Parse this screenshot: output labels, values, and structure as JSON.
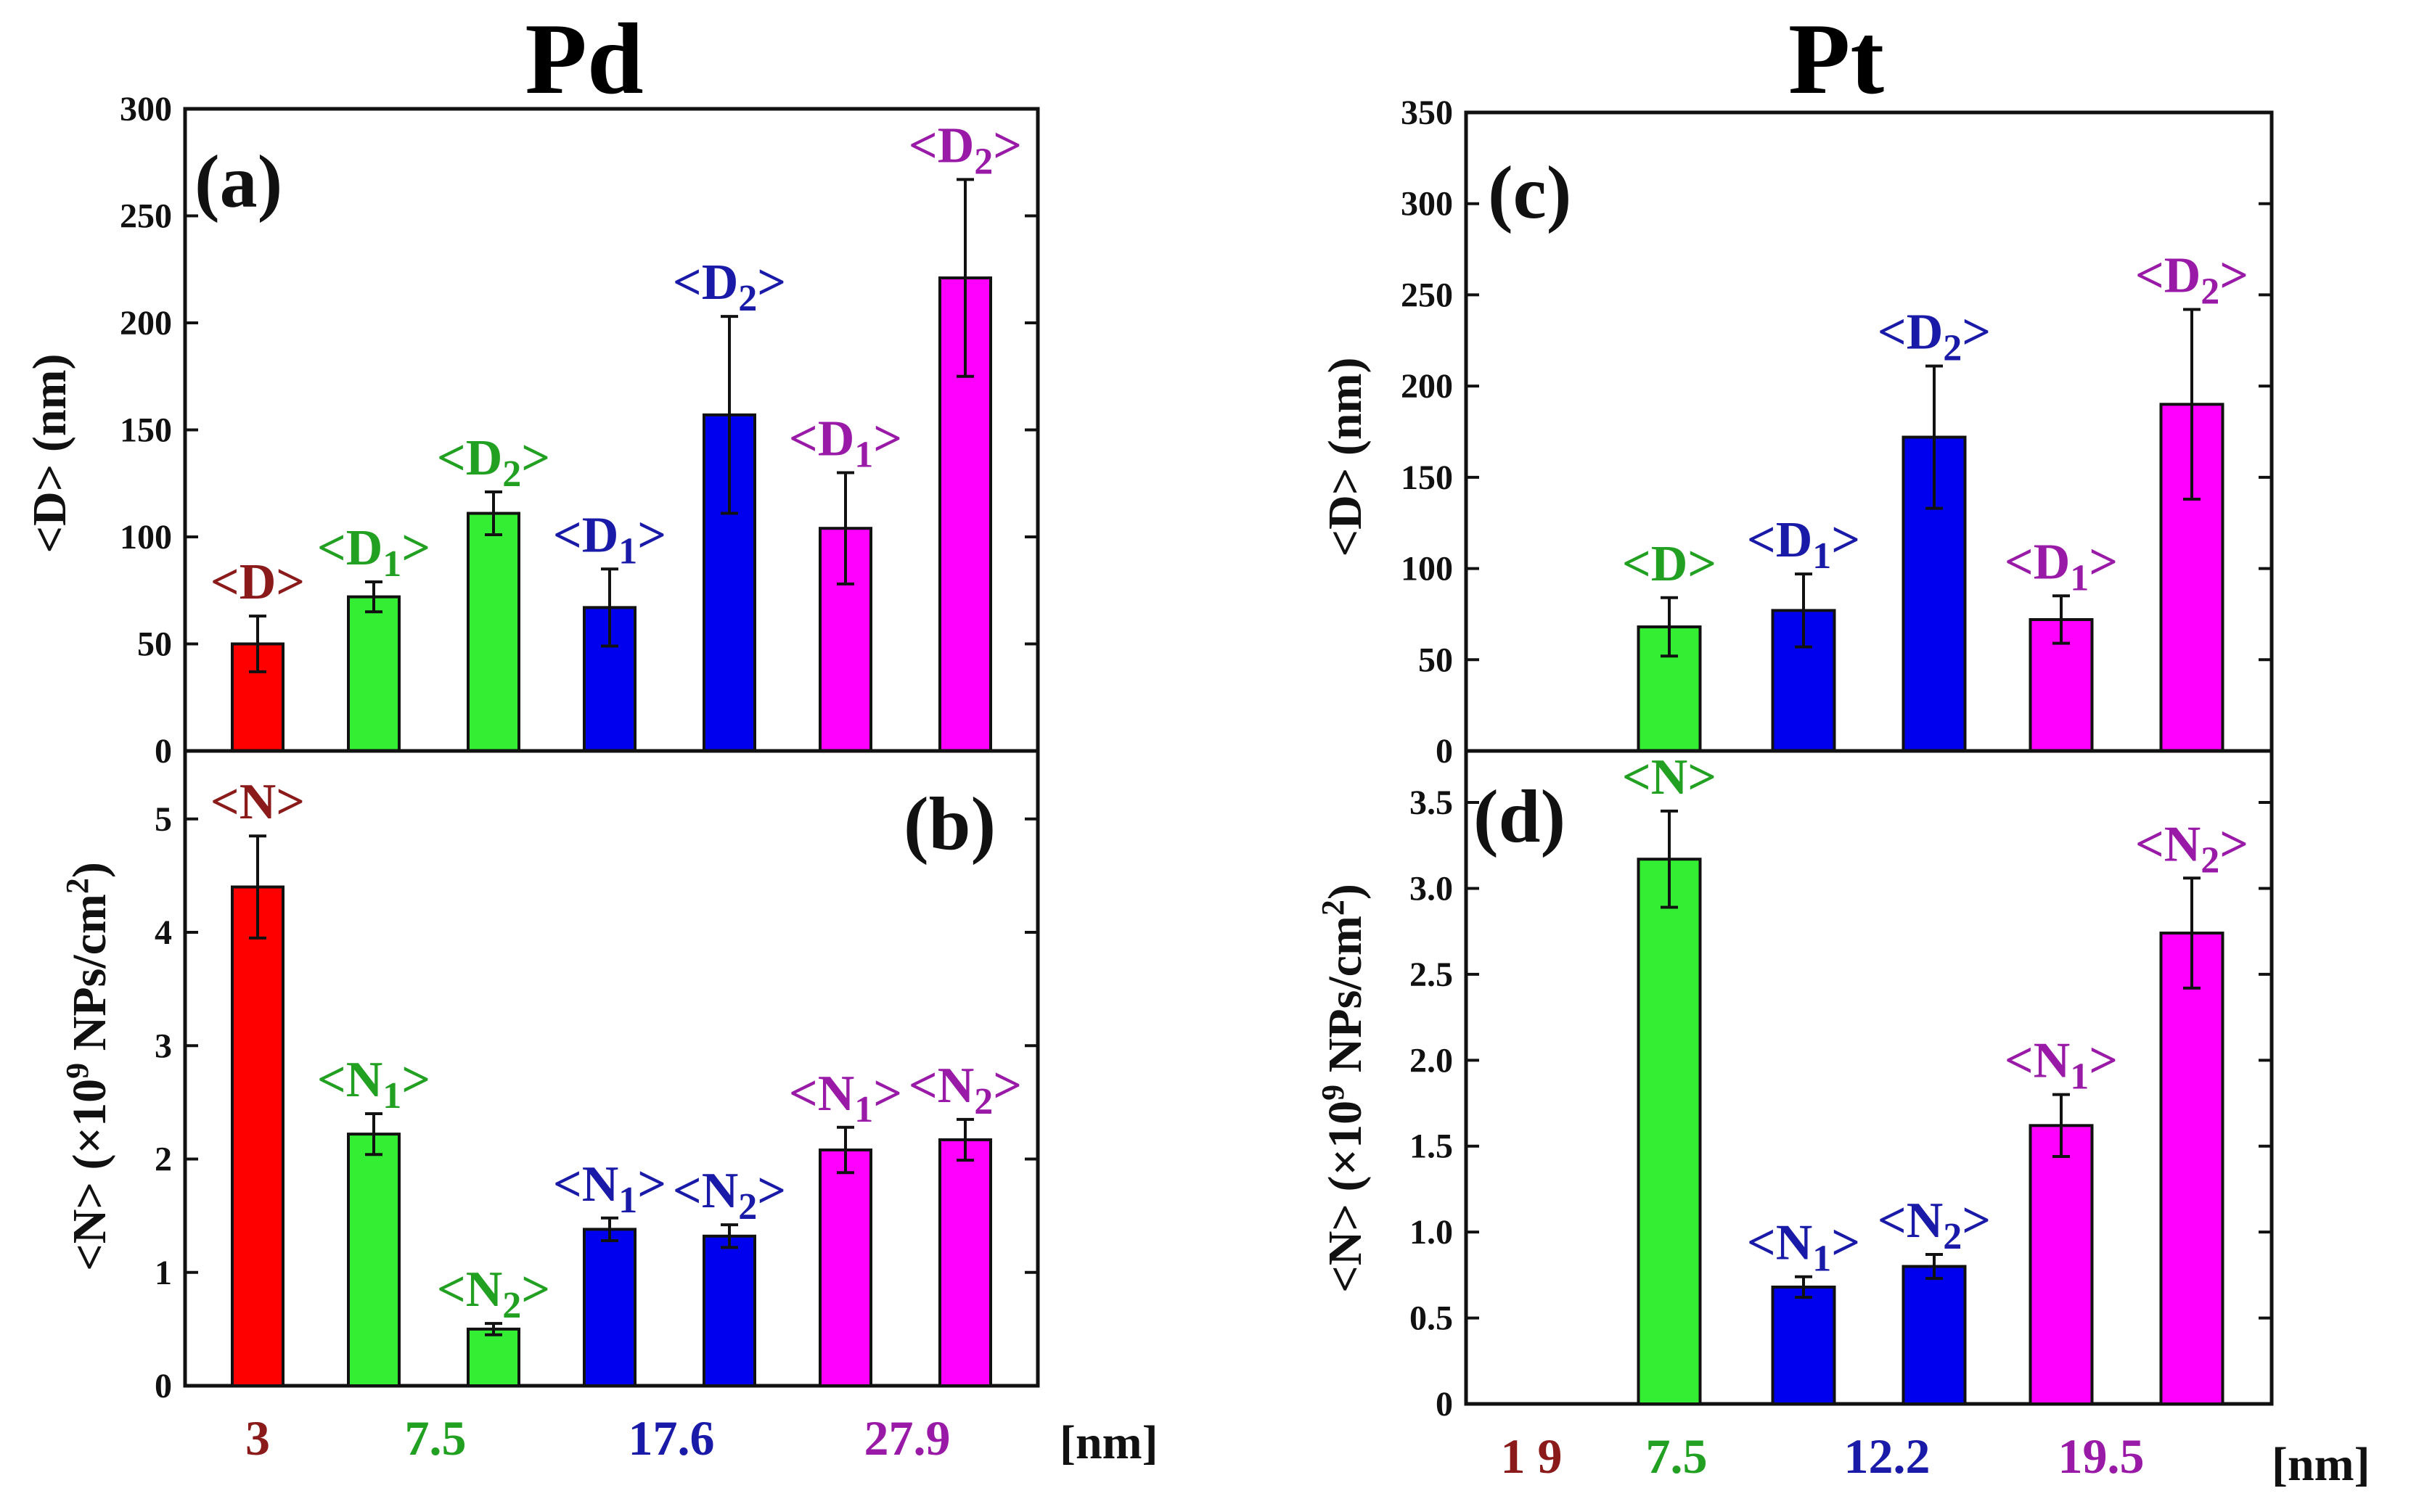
{
  "titles": {
    "left": "Pd",
    "right": "Pt"
  },
  "axis_labels": {
    "d_text": "<D> (nm)",
    "n_prefix": "<N> (×10",
    "n_exp": "9",
    "n_mid": " NPs/cm",
    "n_exp2": "2",
    "n_suffix": ")"
  },
  "unit_label": "[nm]",
  "chart_data": [
    {
      "id": "a",
      "panel_label": "(a)",
      "type": "bar",
      "ylim": [
        0,
        300
      ],
      "yticks": [
        0,
        50,
        100,
        150,
        200,
        250,
        300
      ],
      "bars": [
        {
          "label": "<D>",
          "value": 50,
          "err": 13,
          "color": "#ff0000",
          "label_color": "#8b1a1a"
        },
        {
          "label": "<D1>",
          "value": 72,
          "err": 7,
          "color": "#33ee33",
          "label_color": "#22a022"
        },
        {
          "label": "<D2>",
          "value": 111,
          "err": 10,
          "color": "#33ee33",
          "label_color": "#22a022"
        },
        {
          "label": "<D1>",
          "value": 67,
          "err": 18,
          "color": "#0000ee",
          "label_color": "#1a1aa8"
        },
        {
          "label": "<D2>",
          "value": 157,
          "err": 46,
          "color": "#0000ee",
          "label_color": "#1a1aa8"
        },
        {
          "label": "<D1>",
          "value": 104,
          "err": 26,
          "color": "#ff00ff",
          "label_color": "#9a1aa8"
        },
        {
          "label": "<D2>",
          "value": 221,
          "err": 46,
          "color": "#ff00ff",
          "label_color": "#9a1aa8"
        }
      ]
    },
    {
      "id": "b",
      "panel_label": "(b)",
      "type": "bar",
      "ylim": [
        0,
        5.6
      ],
      "yticks": [
        0,
        1,
        2,
        3,
        4,
        5
      ],
      "bars": [
        {
          "label": "<N>",
          "value": 4.4,
          "err": 0.45,
          "color": "#ff0000",
          "label_color": "#8b1a1a"
        },
        {
          "label": "<N1>",
          "value": 2.22,
          "err": 0.18,
          "color": "#33ee33",
          "label_color": "#22a022"
        },
        {
          "label": "<N2>",
          "value": 0.5,
          "err": 0.05,
          "color": "#33ee33",
          "label_color": "#22a022"
        },
        {
          "label": "<N1>",
          "value": 1.38,
          "err": 0.1,
          "color": "#0000ee",
          "label_color": "#1a1aa8"
        },
        {
          "label": "<N2>",
          "value": 1.32,
          "err": 0.1,
          "color": "#0000ee",
          "label_color": "#1a1aa8"
        },
        {
          "label": "<N1>",
          "value": 2.08,
          "err": 0.2,
          "color": "#ff00ff",
          "label_color": "#9a1aa8"
        },
        {
          "label": "<N2>",
          "value": 2.17,
          "err": 0.18,
          "color": "#ff00ff",
          "label_color": "#9a1aa8"
        }
      ],
      "categories": [
        {
          "label": "3",
          "color": "#8b1a1a"
        },
        {
          "label": "7.5",
          "color": "#22a022"
        },
        {
          "label": "17.6",
          "color": "#1a1aa8"
        },
        {
          "label": "27.9",
          "color": "#9a1aa8"
        }
      ]
    },
    {
      "id": "c",
      "panel_label": "(c)",
      "type": "bar",
      "ylim": [
        0,
        350
      ],
      "yticks": [
        0,
        50,
        100,
        150,
        200,
        250,
        300,
        350
      ],
      "bars": [
        {
          "label": "<D>",
          "value": 68,
          "err": 16,
          "color": "#33ee33",
          "label_color": "#22a022"
        },
        {
          "label": "<D1>",
          "value": 77,
          "err": 20,
          "color": "#0000ee",
          "label_color": "#1a1aa8"
        },
        {
          "label": "<D2>",
          "value": 172,
          "err": 39,
          "color": "#0000ee",
          "label_color": "#1a1aa8"
        },
        {
          "label": "<D1>",
          "value": 72,
          "err": 13,
          "color": "#ff00ff",
          "label_color": "#9a1aa8"
        },
        {
          "label": "<D2>",
          "value": 190,
          "err": 52,
          "color": "#ff00ff",
          "label_color": "#9a1aa8"
        }
      ]
    },
    {
      "id": "d",
      "panel_label": "(d)",
      "type": "bar",
      "ylim": [
        0,
        3.8
      ],
      "yticks": [
        "0",
        "0.5",
        "1.0",
        "1.5",
        "2.0",
        "2.5",
        "3.0",
        "3.5"
      ],
      "bars": [
        {
          "label": "<N>",
          "value": 3.17,
          "err": 0.28,
          "color": "#33ee33",
          "label_color": "#22a022"
        },
        {
          "label": "<N1>",
          "value": 0.68,
          "err": 0.06,
          "color": "#0000ee",
          "label_color": "#1a1aa8"
        },
        {
          "label": "<N2>",
          "value": 0.8,
          "err": 0.07,
          "color": "#0000ee",
          "label_color": "#1a1aa8"
        },
        {
          "label": "<N1>",
          "value": 1.62,
          "err": 0.18,
          "color": "#ff00ff",
          "label_color": "#9a1aa8"
        },
        {
          "label": "<N2>",
          "value": 2.74,
          "err": 0.32,
          "color": "#ff00ff",
          "label_color": "#9a1aa8"
        }
      ],
      "categories": [
        {
          "label": "1 9",
          "color": "#8b1a1a"
        },
        {
          "label": "7.5",
          "color": "#22a022"
        },
        {
          "label": "12.2",
          "color": "#1a1aa8"
        },
        {
          "label": "19.5",
          "color": "#9a1aa8"
        }
      ]
    }
  ]
}
